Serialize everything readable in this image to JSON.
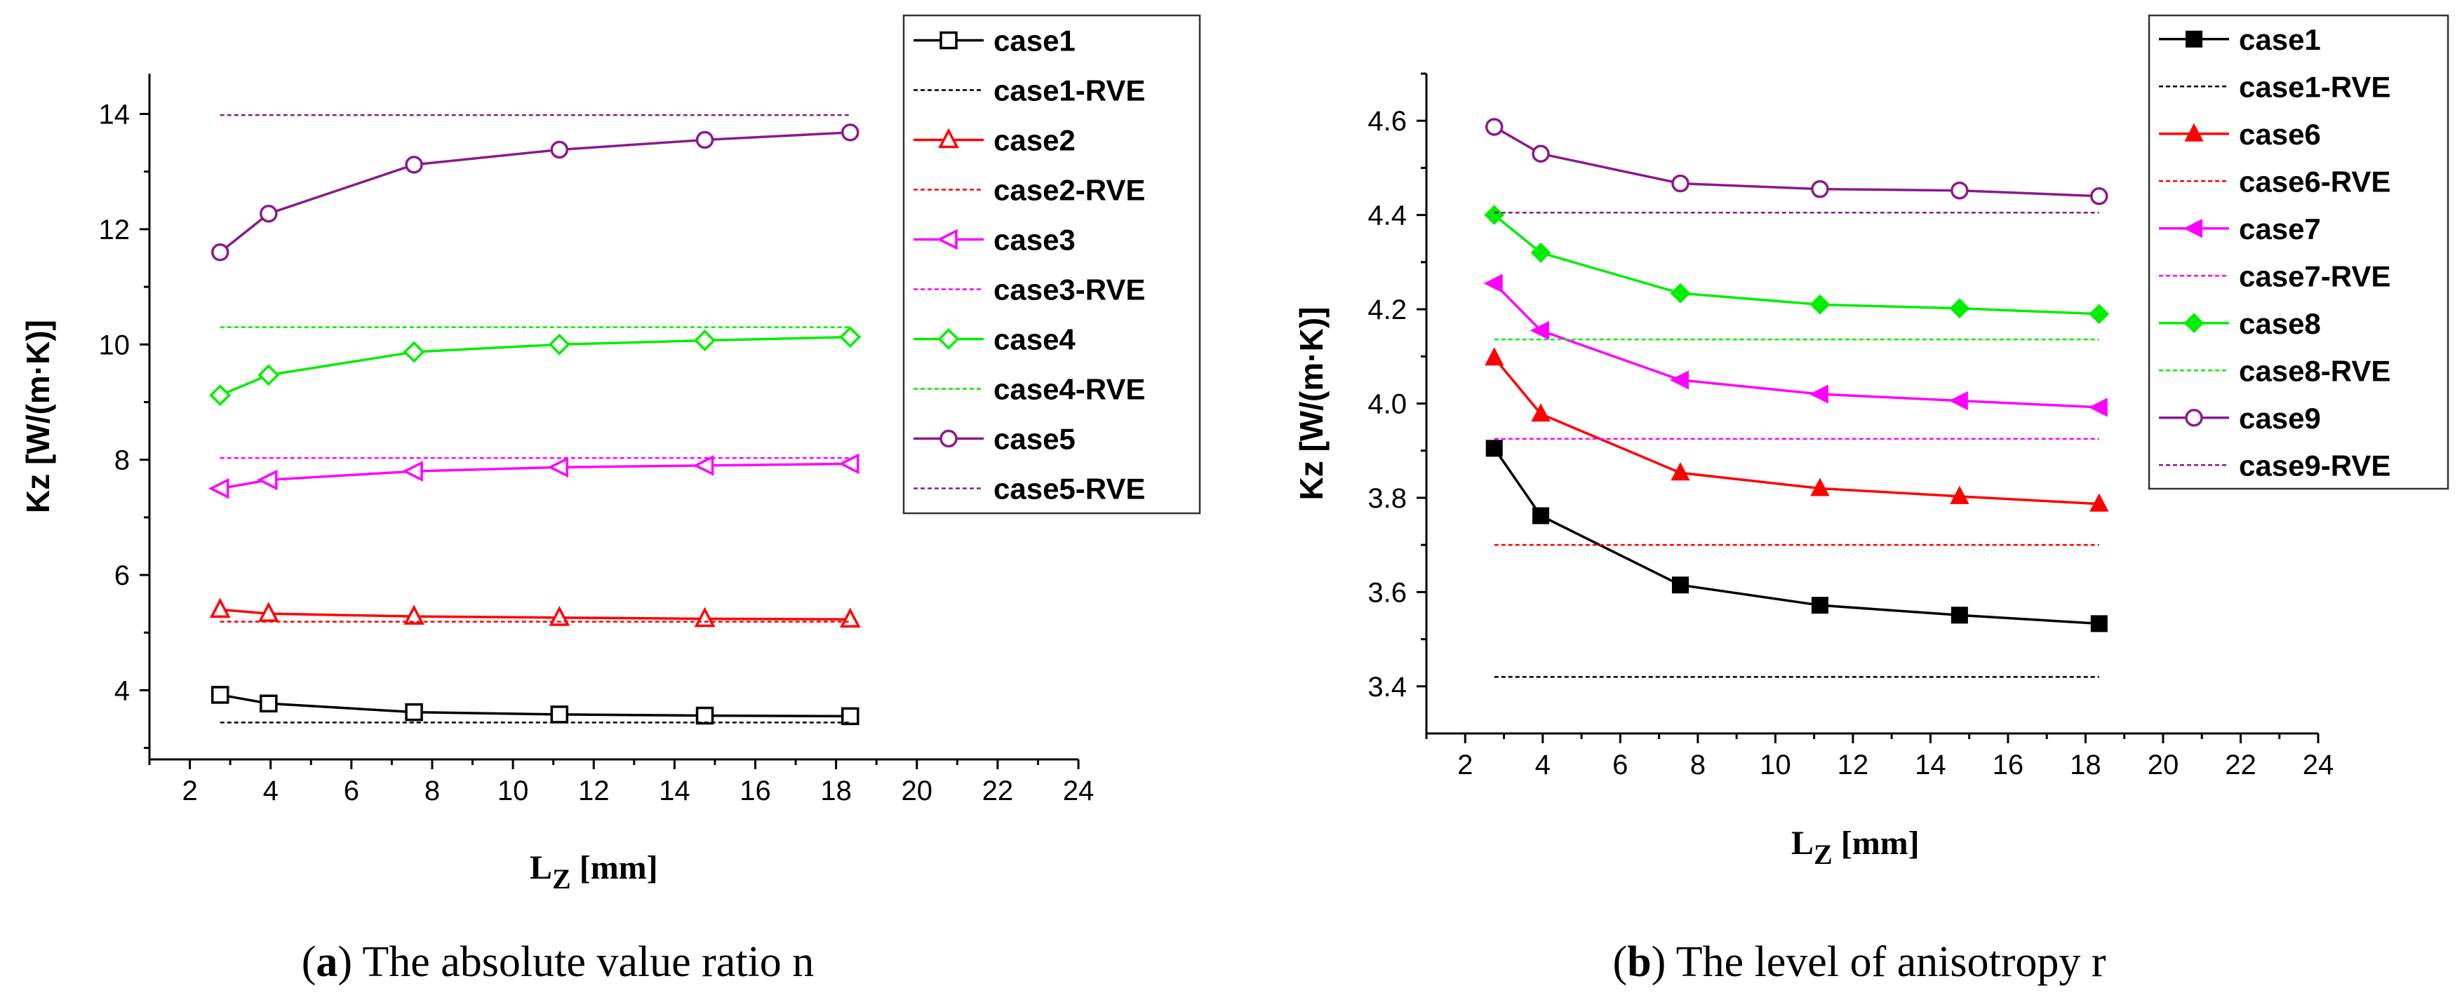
{
  "chart_data": [
    {
      "type": "line",
      "id": "a",
      "ylabel": "Kz [W/(m·K)]",
      "xlabel_main": "L",
      "xlabel_sub": "Z",
      "xlabel_unit": "[mm]",
      "xlim": [
        1,
        24
      ],
      "ylim": [
        2.8,
        14.7
      ],
      "xticks": [
        "2",
        "4",
        "6",
        "8",
        "10",
        "12",
        "14",
        "16",
        "18",
        "20",
        "22",
        "24"
      ],
      "yticks": [
        "4",
        "6",
        "8",
        "10",
        "12",
        "14"
      ],
      "caption_letter": "a",
      "caption_text": " The absolute value ratio n",
      "x": [
        2.75,
        3.95,
        7.55,
        11.15,
        14.75,
        18.35
      ],
      "series": [
        {
          "name": "case1",
          "color": "#000000",
          "marker": "square-open",
          "values": [
            3.92,
            3.77,
            3.62,
            3.58,
            3.56,
            3.55
          ]
        },
        {
          "name": "case1-RVE",
          "color": "#000000",
          "dashed": true,
          "rve": 3.44
        },
        {
          "name": "case2",
          "color": "#ff0000",
          "marker": "triangle-up-open",
          "values": [
            5.4,
            5.33,
            5.28,
            5.26,
            5.24,
            5.23
          ]
        },
        {
          "name": "case2-RVE",
          "color": "#ff0000",
          "dashed": true,
          "rve": 5.19
        },
        {
          "name": "case3",
          "color": "#ff00ff",
          "marker": "triangle-left-open",
          "values": [
            7.5,
            7.65,
            7.8,
            7.87,
            7.9,
            7.93
          ]
        },
        {
          "name": "case3-RVE",
          "color": "#ff00ff",
          "dashed": true,
          "rve": 8.03
        },
        {
          "name": "case4",
          "color": "#00ee00",
          "marker": "diamond-open",
          "values": [
            9.12,
            9.47,
            9.87,
            10.0,
            10.07,
            10.13
          ]
        },
        {
          "name": "case4-RVE",
          "color": "#00ee00",
          "dashed": true,
          "rve": 10.3
        },
        {
          "name": "case5",
          "color": "#8b1a8b",
          "marker": "circle-open",
          "values": [
            11.6,
            12.27,
            13.12,
            13.38,
            13.55,
            13.68
          ]
        },
        {
          "name": "case5-RVE",
          "color": "#8b1a8b",
          "dashed": true,
          "rve": 13.98
        }
      ]
    },
    {
      "type": "line",
      "id": "b",
      "ylabel": "Kz [W/(m·K)]",
      "xlabel_main": "L",
      "xlabel_sub": "Z",
      "xlabel_unit": "[mm]",
      "xlim": [
        1,
        24
      ],
      "ylim": [
        3.3,
        4.7
      ],
      "xticks": [
        "2",
        "4",
        "6",
        "8",
        "10",
        "12",
        "14",
        "16",
        "18",
        "20",
        "22",
        "24"
      ],
      "yticks": [
        "3.4",
        "3.6",
        "3.8",
        "4.0",
        "4.2",
        "4.4",
        "4.6"
      ],
      "caption_letter": "b",
      "caption_text": " The level of anisotropy r",
      "x": [
        2.75,
        3.95,
        7.55,
        11.15,
        14.75,
        18.35
      ],
      "series": [
        {
          "name": "case1",
          "color": "#000000",
          "marker": "square-filled",
          "values": [
            3.905,
            3.762,
            3.615,
            3.572,
            3.551,
            3.533
          ]
        },
        {
          "name": "case1-RVE",
          "color": "#000000",
          "dashed": true,
          "rve": 3.42
        },
        {
          "name": "case6",
          "color": "#ff0000",
          "marker": "triangle-up-filled",
          "values": [
            4.097,
            3.978,
            3.853,
            3.82,
            3.803,
            3.787
          ]
        },
        {
          "name": "case6-RVE",
          "color": "#ff0000",
          "dashed": true,
          "rve": 3.7
        },
        {
          "name": "case7",
          "color": "#ff00ff",
          "marker": "triangle-left-filled",
          "values": [
            4.255,
            4.155,
            4.05,
            4.02,
            4.006,
            3.992
          ]
        },
        {
          "name": "case7-RVE",
          "color": "#ff00ff",
          "dashed": true,
          "rve": 3.925
        },
        {
          "name": "case8",
          "color": "#00ee00",
          "marker": "diamond-filled",
          "values": [
            4.4,
            4.32,
            4.234,
            4.21,
            4.202,
            4.19
          ]
        },
        {
          "name": "case8-RVE",
          "color": "#00ee00",
          "dashed": true,
          "rve": 4.136
        },
        {
          "name": "case9",
          "color": "#8b1a8b",
          "marker": "circle-open",
          "values": [
            4.587,
            4.53,
            4.467,
            4.455,
            4.452,
            4.44
          ]
        },
        {
          "name": "case9-RVE",
          "color": "#8b1a8b",
          "dashed": true,
          "rve": 4.405
        }
      ]
    }
  ]
}
